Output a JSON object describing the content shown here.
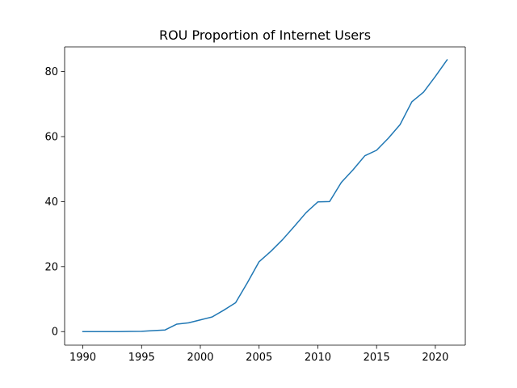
{
  "chart_data": {
    "type": "line",
    "title": "ROU Proportion of Internet Users",
    "xlabel": "",
    "ylabel": "",
    "xlim": [
      1988.45,
      2022.55
    ],
    "ylim": [
      -4.17,
      87.6
    ],
    "x_ticks": [
      1990,
      1995,
      2000,
      2005,
      2010,
      2015,
      2020
    ],
    "y_ticks": [
      0,
      20,
      40,
      60,
      80
    ],
    "grid": false,
    "legend": "none",
    "series": [
      {
        "color": "#1f77b4",
        "x": [
          1990,
          1991,
          1992,
          1993,
          1994,
          1995,
          1996,
          1997,
          1998,
          1999,
          2000,
          2001,
          2002,
          2003,
          2004,
          2005,
          2006,
          2007,
          2008,
          2009,
          2010,
          2011,
          2012,
          2013,
          2014,
          2015,
          2016,
          2017,
          2018,
          2019,
          2020,
          2021
        ],
        "y": [
          0,
          0,
          0,
          0,
          0.05,
          0.1,
          0.3,
          0.5,
          2.3,
          2.7,
          3.6,
          4.5,
          6.6,
          8.9,
          15,
          21.5,
          24.7,
          28.3,
          32.4,
          36.6,
          39.9,
          40,
          45.9,
          49.8,
          54.1,
          55.8,
          59.5,
          63.7,
          70.7,
          73.7,
          78.5,
          83.6
        ]
      }
    ]
  }
}
